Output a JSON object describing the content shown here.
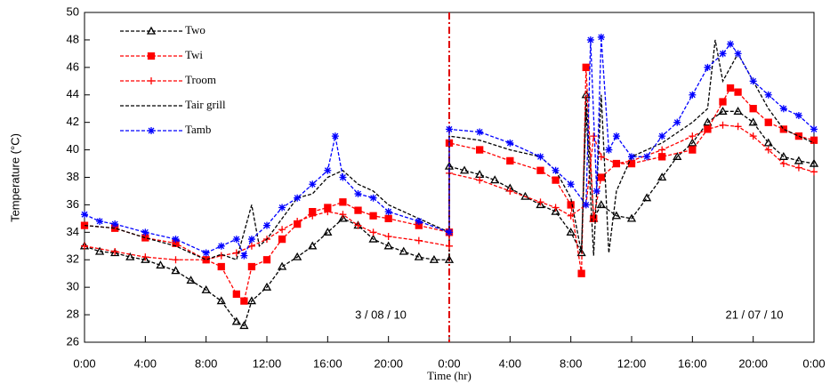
{
  "chart_data": {
    "type": "line",
    "x_label": "Time (hr)",
    "y_label": "Temperature (°C)",
    "xlim": [
      0,
      48
    ],
    "ylim": [
      26,
      50
    ],
    "xticks": [
      {
        "value": 0,
        "label": "0:00"
      },
      {
        "value": 4,
        "label": "4:00"
      },
      {
        "value": 8,
        "label": "8:00"
      },
      {
        "value": 12,
        "label": "12:00"
      },
      {
        "value": 16,
        "label": "16:00"
      },
      {
        "value": 20,
        "label": "20:00"
      },
      {
        "value": 24,
        "label": "0:00"
      },
      {
        "value": 28,
        "label": "4:00"
      },
      {
        "value": 32,
        "label": "8:00"
      },
      {
        "value": 36,
        "label": "12:00"
      },
      {
        "value": 40,
        "label": "16:00"
      },
      {
        "value": 44,
        "label": "20:00"
      },
      {
        "value": 48,
        "label": "0:00"
      }
    ],
    "yticks": [
      26,
      28,
      30,
      32,
      34,
      36,
      38,
      40,
      42,
      44,
      46,
      48,
      50
    ],
    "grid": false,
    "legend": "upper left",
    "divider_x": 24,
    "divider_color": "#e00000",
    "annotations": [
      "3 / 08 / 10",
      "21 / 07 / 10"
    ],
    "series": [
      {
        "name": "Two",
        "color": "#000000",
        "marker": "triangle",
        "x": [
          0,
          1,
          2,
          3,
          4,
          5,
          6,
          7,
          8,
          9,
          10,
          10.5,
          11,
          12,
          13,
          14,
          15,
          16,
          17,
          18,
          19,
          20,
          21,
          22,
          23,
          24,
          24,
          25,
          26,
          27,
          28,
          29,
          30,
          31,
          32,
          32.7,
          33,
          33.5,
          34,
          35,
          36,
          37,
          38,
          39,
          40,
          41,
          42,
          43,
          44,
          45,
          46,
          47,
          48
        ],
        "values": [
          33,
          32.6,
          32.5,
          32.2,
          32,
          31.6,
          31.2,
          30.5,
          29.8,
          29,
          27.5,
          27.2,
          29,
          30,
          31.5,
          32.2,
          33,
          34,
          35,
          34.5,
          33.5,
          33,
          32.6,
          32.2,
          32,
          32,
          38.8,
          38.5,
          38.2,
          37.8,
          37.2,
          36.6,
          36,
          35.5,
          34,
          32.5,
          44,
          35,
          36,
          35.2,
          35,
          36.5,
          38,
          39.5,
          40.5,
          42,
          42.8,
          42.8,
          42,
          40.5,
          39.5,
          39.2,
          39
        ]
      },
      {
        "name": "Twi",
        "color": "#ff0000",
        "marker": "square",
        "x": [
          0,
          2,
          4,
          6,
          8,
          9,
          10,
          10.5,
          11,
          12,
          13,
          14,
          15,
          16,
          17,
          18,
          19,
          20,
          22,
          24,
          24,
          26,
          28,
          30,
          31,
          32,
          32.7,
          33,
          33.5,
          34,
          35,
          36,
          38,
          40,
          41,
          42,
          42.5,
          43,
          44,
          45,
          46,
          47,
          48
        ],
        "values": [
          34.5,
          34.3,
          33.6,
          33.2,
          32,
          31.5,
          29.5,
          29,
          31.5,
          32,
          33.5,
          34.6,
          35.5,
          35.8,
          36.2,
          35.6,
          35.2,
          35,
          34.5,
          34,
          40.5,
          40,
          39.2,
          38.5,
          37.8,
          36,
          31,
          46,
          35,
          38,
          39,
          39,
          39.5,
          40,
          41.5,
          43.5,
          44.5,
          44.2,
          43,
          42,
          41.5,
          41,
          40.7
        ]
      },
      {
        "name": "Troom",
        "color": "#ff0000",
        "marker": "plus",
        "x": [
          0,
          2,
          4,
          6,
          8,
          9,
          10,
          11,
          12,
          13,
          14,
          15,
          16,
          17,
          18,
          19,
          20,
          22,
          24,
          24,
          26,
          28,
          30,
          31,
          32,
          33,
          33.5,
          34,
          35,
          36,
          38,
          40,
          41,
          42,
          43,
          44,
          45,
          46,
          47,
          48
        ],
        "values": [
          33,
          32.6,
          32.2,
          32,
          32,
          32.3,
          32.5,
          33,
          33.5,
          34.2,
          34.8,
          35.2,
          35.5,
          35.3,
          34.5,
          34,
          33.7,
          33.4,
          33,
          38.3,
          37.8,
          37,
          36.2,
          35.8,
          35.2,
          36,
          41,
          39.5,
          39,
          39.2,
          40,
          41,
          41.5,
          41.8,
          41.7,
          41,
          40,
          39,
          38.7,
          38.4
        ]
      },
      {
        "name": "Tair grill",
        "color": "#000000",
        "marker": "none",
        "x": [
          0,
          2,
          4,
          6,
          8,
          9,
          10,
          11,
          11.5,
          12,
          13,
          14,
          15,
          16,
          17,
          18,
          19,
          20,
          22,
          24,
          24,
          26,
          28,
          30,
          31,
          32,
          32.7,
          33,
          33.5,
          34,
          34.5,
          35,
          36,
          38,
          40,
          41,
          41.5,
          42,
          43,
          44,
          45,
          46,
          47,
          48
        ],
        "values": [
          34.5,
          34.3,
          33.6,
          33,
          32,
          32.4,
          32,
          36,
          33,
          33.5,
          35,
          36.5,
          36.8,
          38,
          38.5,
          37.5,
          37,
          36,
          35,
          34,
          41,
          40.7,
          40,
          39.5,
          38.5,
          36.5,
          32.5,
          43,
          32.3,
          44,
          32.5,
          37,
          39.5,
          40.5,
          42,
          43,
          48,
          45,
          47,
          45,
          43,
          41.5,
          41,
          40.5
        ]
      },
      {
        "name": "Tamb",
        "color": "#0000ff",
        "marker": "asterisk",
        "x": [
          0,
          1,
          2,
          4,
          6,
          8,
          9,
          10,
          10.5,
          11,
          12,
          13,
          14,
          15,
          16,
          16.5,
          17,
          18,
          19,
          20,
          22,
          24,
          24,
          26,
          28,
          30,
          31,
          32,
          33,
          33.3,
          33.7,
          34,
          34.5,
          35,
          36,
          37,
          38,
          39,
          40,
          41,
          42,
          42.5,
          43,
          44,
          45,
          46,
          47,
          48
        ],
        "values": [
          35.3,
          34.8,
          34.6,
          34,
          33.5,
          32.5,
          33,
          33.5,
          32.3,
          33.5,
          34.5,
          35.8,
          36.5,
          37.5,
          38.5,
          41,
          38,
          36.8,
          36.5,
          35.5,
          34.8,
          34,
          41.5,
          41.3,
          40.5,
          39.5,
          38.5,
          37.5,
          36,
          48,
          37,
          48.2,
          40,
          41,
          39.5,
          39.5,
          41,
          42,
          44,
          46,
          47,
          47.7,
          47,
          45,
          44,
          43,
          42.5,
          41.5
        ]
      }
    ]
  }
}
